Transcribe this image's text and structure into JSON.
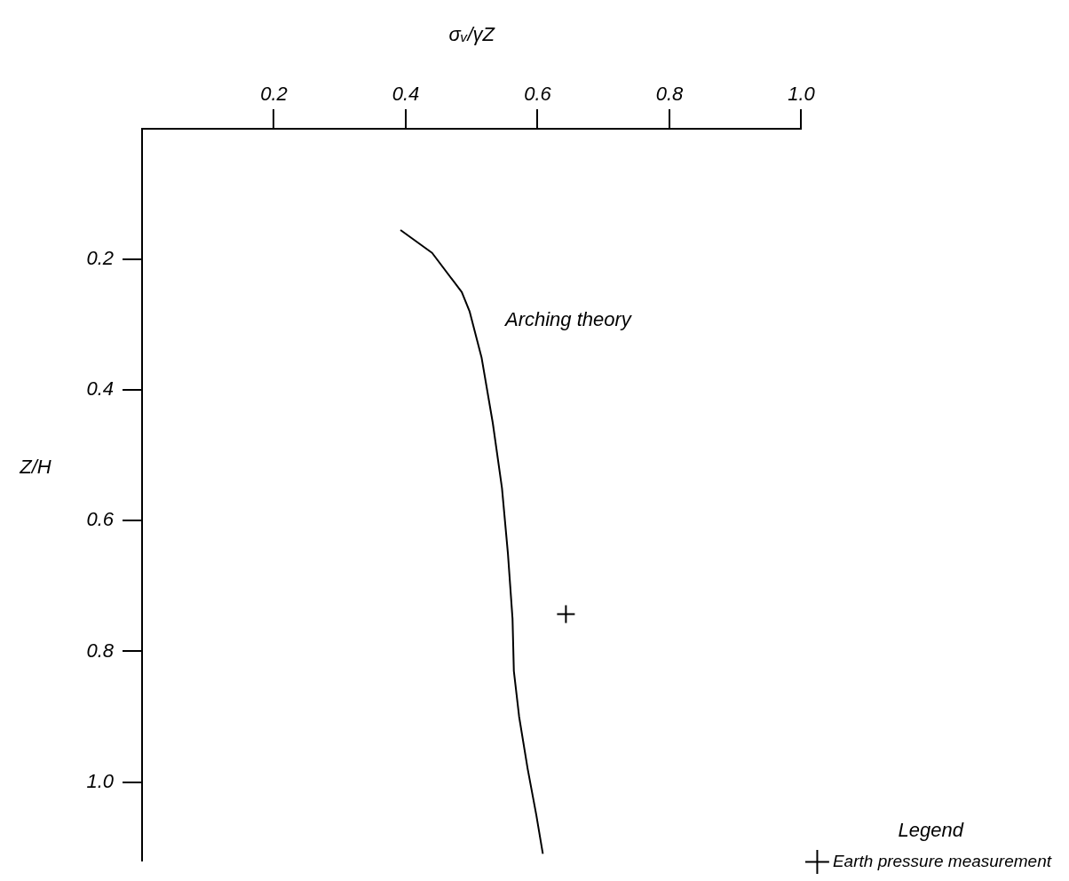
{
  "chart_data": {
    "type": "line",
    "xlabel": "σᵥ/γZ",
    "ylabel": "Z/H",
    "xlim": [
      0,
      1.0
    ],
    "xticks": [
      0.2,
      0.4,
      0.6,
      0.8,
      {
        "value": 1.0,
        "label": "1.0"
      }
    ],
    "ylim": [
      1.12,
      0
    ],
    "yticks": [
      0.2,
      0.4,
      0.6,
      0.8,
      {
        "value": 1.0,
        "label": "1.0"
      }
    ],
    "grid": false,
    "legend": "bottom right",
    "legend_title": "Legend",
    "series": [
      {
        "name": "Arching theory",
        "color": "#000000",
        "marker": "none",
        "line_style": "solid",
        "x": [
          0.392,
          0.44,
          0.485,
          0.497,
          0.515,
          0.532,
          0.546,
          0.555,
          0.562,
          0.564,
          0.572,
          0.585,
          0.598,
          0.608
        ],
        "values": [
          0.155,
          0.19,
          0.25,
          0.28,
          0.35,
          0.45,
          0.55,
          0.65,
          0.75,
          0.83,
          0.9,
          0.98,
          1.05,
          1.11
        ]
      },
      {
        "type": "scatter",
        "name": "Earth pressure measurement",
        "color": "#000000",
        "marker": "cross",
        "x": [
          0.643
        ],
        "values": [
          0.743
        ]
      }
    ]
  }
}
